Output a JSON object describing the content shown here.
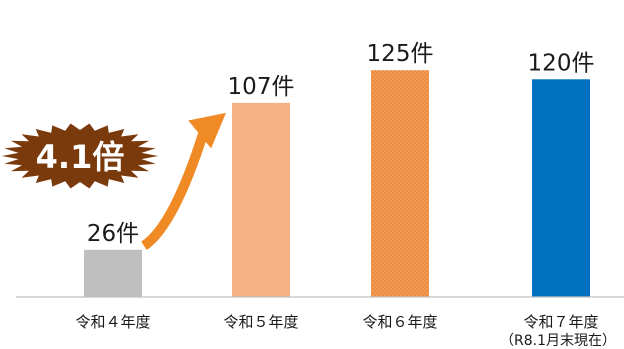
{
  "chart_data": {
    "type": "bar",
    "categories": [
      "令和４年度",
      "令和５年度",
      "令和６年度",
      "令和７年度"
    ],
    "category_notes": [
      "",
      "",
      "",
      "（R8.1月末現在）"
    ],
    "values": [
      26,
      107,
      125,
      120
    ],
    "value_labels": [
      "26件",
      "107件",
      "125件",
      "120件"
    ],
    "unit": "件",
    "ylim": [
      0,
      140
    ],
    "grid": false,
    "legend": "none",
    "bar_colors": [
      "#BFBFBF",
      "#F4B183",
      "#F08C3C",
      "#0070C0"
    ],
    "bar_patterns": [
      "solid",
      "solid",
      "dotted",
      "solid"
    ],
    "annotation": {
      "label": "4.1倍",
      "badge_color": "#7B3A0C",
      "text_color": "#ffffff",
      "arrow_color": "#F08A24",
      "from_category": 0,
      "to_category": 1
    }
  }
}
